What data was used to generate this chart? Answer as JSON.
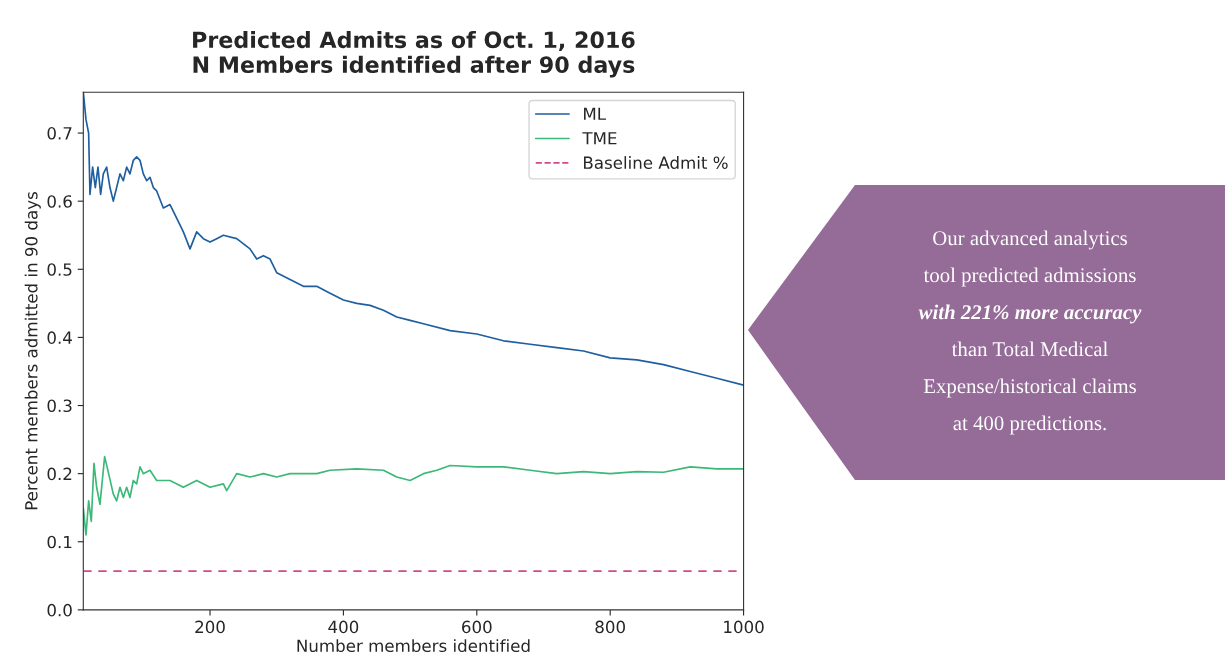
{
  "chart_data": {
    "type": "line",
    "title": "Predicted Admits as of Oct. 1, 2016\nN Members identified after 90 days",
    "xlabel": "Number members identified",
    "ylabel": "Percent members admitted in 90 days",
    "xlim": [
      10,
      1000
    ],
    "xticks": [
      200,
      400,
      600,
      800,
      1000
    ],
    "ylim": [
      0,
      0.76
    ],
    "yticks": [
      {
        "value": 0,
        "label": "0.0"
      },
      0.1,
      0.2,
      0.3,
      0.4,
      0.5,
      0.6,
      0.7
    ],
    "legend": "top right",
    "grid": false,
    "marker": "none",
    "line_style": "solid",
    "series": [
      {
        "name": "ML",
        "color": "#1f5fa0",
        "x": [
          10,
          14,
          18,
          20,
          24,
          28,
          32,
          36,
          40,
          45,
          50,
          55,
          60,
          65,
          70,
          75,
          80,
          85,
          90,
          95,
          100,
          105,
          110,
          115,
          120,
          130,
          140,
          150,
          160,
          170,
          180,
          190,
          200,
          210,
          220,
          240,
          260,
          270,
          280,
          290,
          300,
          320,
          340,
          360,
          380,
          400,
          420,
          440,
          460,
          480,
          500,
          520,
          560,
          600,
          640,
          680,
          720,
          760,
          800,
          840,
          880,
          920,
          960,
          1000
        ],
        "values": [
          0.76,
          0.72,
          0.7,
          0.61,
          0.65,
          0.62,
          0.65,
          0.61,
          0.64,
          0.65,
          0.62,
          0.6,
          0.62,
          0.64,
          0.63,
          0.65,
          0.64,
          0.66,
          0.665,
          0.66,
          0.64,
          0.63,
          0.635,
          0.62,
          0.615,
          0.59,
          0.595,
          0.575,
          0.555,
          0.53,
          0.555,
          0.545,
          0.54,
          0.545,
          0.55,
          0.545,
          0.53,
          0.515,
          0.52,
          0.515,
          0.495,
          0.485,
          0.475,
          0.475,
          0.465,
          0.455,
          0.45,
          0.447,
          0.44,
          0.43,
          0.425,
          0.42,
          0.41,
          0.405,
          0.395,
          0.39,
          0.385,
          0.38,
          0.37,
          0.367,
          0.36,
          0.35,
          0.34,
          0.33
        ]
      },
      {
        "name": "TME",
        "color": "#3cb878",
        "x": [
          10,
          14,
          18,
          22,
          26,
          30,
          35,
          42,
          48,
          55,
          60,
          65,
          70,
          75,
          80,
          85,
          90,
          95,
          100,
          110,
          120,
          140,
          160,
          180,
          200,
          220,
          225,
          240,
          260,
          280,
          300,
          320,
          360,
          380,
          420,
          460,
          480,
          500,
          520,
          540,
          560,
          600,
          640,
          680,
          720,
          760,
          800,
          840,
          880,
          920,
          960,
          1000
        ],
        "values": [
          0.15,
          0.11,
          0.16,
          0.13,
          0.215,
          0.18,
          0.155,
          0.225,
          0.2,
          0.17,
          0.16,
          0.18,
          0.165,
          0.18,
          0.165,
          0.19,
          0.185,
          0.21,
          0.2,
          0.205,
          0.19,
          0.19,
          0.18,
          0.19,
          0.18,
          0.185,
          0.175,
          0.2,
          0.195,
          0.2,
          0.195,
          0.2,
          0.2,
          0.205,
          0.207,
          0.205,
          0.195,
          0.19,
          0.2,
          0.205,
          0.212,
          0.21,
          0.21,
          0.205,
          0.2,
          0.203,
          0.2,
          0.203,
          0.202,
          0.21,
          0.207,
          0.207
        ]
      }
    ],
    "ref_lines": [
      {
        "axis": "y",
        "value": 0.057,
        "label": "Baseline Admit %",
        "color": "#d04a8c",
        "line_style": "dashed"
      }
    ],
    "annotations": [
      "Our advanced analytics\ntool predicted admissions\nwith 221% more accuracy\nthan Total Medical\nExpense/historical claims\nat 400 predictions."
    ]
  }
}
